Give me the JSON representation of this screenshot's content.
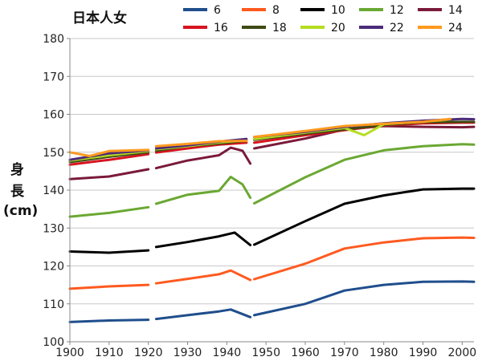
{
  "chart_data": {
    "type": "line",
    "title": "日本人女",
    "ylabel_lines": [
      "身",
      "長",
      "(cm)"
    ],
    "xlim": [
      1900,
      2003
    ],
    "ylim": [
      100,
      180
    ],
    "xticks": [
      1900,
      1910,
      1920,
      1930,
      1940,
      1950,
      1960,
      1970,
      1980,
      1990,
      2000
    ],
    "yticks": [
      100,
      110,
      120,
      130,
      140,
      150,
      160,
      170,
      180
    ],
    "grid": "horizontal",
    "legend_position": "top-right",
    "segments": [
      [
        1900,
        1920
      ],
      [
        1922,
        1946
      ],
      [
        1947,
        2003
      ]
    ],
    "series": [
      {
        "name": "6",
        "color": "#1f4e8c",
        "points": [
          [
            1900,
            105.2
          ],
          [
            1910,
            105.6
          ],
          [
            1920,
            105.8
          ],
          [
            1922,
            106.0
          ],
          [
            1930,
            107.0
          ],
          [
            1938,
            108.0
          ],
          [
            1941,
            108.5
          ],
          [
            1946,
            106.5
          ],
          [
            1947,
            107.0
          ],
          [
            1960,
            110.0
          ],
          [
            1970,
            113.5
          ],
          [
            1980,
            115.0
          ],
          [
            1990,
            115.8
          ],
          [
            2000,
            115.9
          ],
          [
            2003,
            115.8
          ]
        ]
      },
      {
        "name": "8",
        "color": "#ff5a1f",
        "points": [
          [
            1900,
            114.0
          ],
          [
            1910,
            114.6
          ],
          [
            1920,
            115.0
          ],
          [
            1922,
            115.4
          ],
          [
            1930,
            116.6
          ],
          [
            1938,
            117.8
          ],
          [
            1941,
            118.8
          ],
          [
            1946,
            116.3
          ],
          [
            1947,
            116.5
          ],
          [
            1960,
            120.6
          ],
          [
            1970,
            124.6
          ],
          [
            1980,
            126.2
          ],
          [
            1990,
            127.3
          ],
          [
            2000,
            127.5
          ],
          [
            2003,
            127.4
          ]
        ]
      },
      {
        "name": "10",
        "color": "#000000",
        "points": [
          [
            1900,
            123.8
          ],
          [
            1910,
            123.5
          ],
          [
            1920,
            124.1
          ],
          [
            1922,
            125.0
          ],
          [
            1930,
            126.3
          ],
          [
            1938,
            127.8
          ],
          [
            1942,
            128.8
          ],
          [
            1946,
            125.5
          ],
          [
            1947,
            125.6
          ],
          [
            1960,
            131.8
          ],
          [
            1970,
            136.4
          ],
          [
            1980,
            138.6
          ],
          [
            1990,
            140.2
          ],
          [
            2000,
            140.4
          ],
          [
            2003,
            140.4
          ]
        ]
      },
      {
        "name": "12",
        "color": "#6aa832",
        "points": [
          [
            1900,
            133.0
          ],
          [
            1910,
            134.0
          ],
          [
            1920,
            135.5
          ],
          [
            1922,
            136.4
          ],
          [
            1930,
            138.8
          ],
          [
            1938,
            139.8
          ],
          [
            1941,
            143.5
          ],
          [
            1944,
            141.5
          ],
          [
            1946,
            138.0
          ],
          [
            1947,
            136.5
          ],
          [
            1960,
            143.4
          ],
          [
            1970,
            148.0
          ],
          [
            1980,
            150.5
          ],
          [
            1990,
            151.6
          ],
          [
            2000,
            152.1
          ],
          [
            2003,
            152.0
          ]
        ]
      },
      {
        "name": "14",
        "color": "#7a1a3a",
        "points": [
          [
            1900,
            142.9
          ],
          [
            1910,
            143.6
          ],
          [
            1920,
            145.5
          ],
          [
            1922,
            145.8
          ],
          [
            1930,
            147.8
          ],
          [
            1938,
            149.2
          ],
          [
            1941,
            151.2
          ],
          [
            1944,
            150.4
          ],
          [
            1946,
            147.0
          ],
          [
            1947,
            151.0
          ],
          [
            1960,
            153.6
          ],
          [
            1970,
            156.0
          ],
          [
            1980,
            156.9
          ],
          [
            1990,
            156.7
          ],
          [
            2000,
            156.6
          ],
          [
            2003,
            156.7
          ]
        ]
      },
      {
        "name": "16",
        "color": "#d8141f",
        "points": [
          [
            1900,
            146.7
          ],
          [
            1910,
            148.0
          ],
          [
            1920,
            149.5
          ],
          [
            1922,
            149.9
          ],
          [
            1930,
            151.0
          ],
          [
            1938,
            152.0
          ],
          [
            1945,
            152.5
          ],
          [
            1947,
            152.5
          ],
          [
            1960,
            154.5
          ],
          [
            1970,
            155.8
          ],
          [
            1980,
            157.1
          ],
          [
            1990,
            157.6
          ],
          [
            2000,
            157.8
          ],
          [
            2003,
            157.8
          ]
        ]
      },
      {
        "name": "18",
        "color": "#3d4a14",
        "points": [
          [
            1900,
            147.4
          ],
          [
            1910,
            148.8
          ],
          [
            1920,
            150.0
          ],
          [
            1922,
            150.4
          ],
          [
            1930,
            151.6
          ],
          [
            1938,
            152.3
          ],
          [
            1945,
            153.0
          ],
          [
            1947,
            153.3
          ],
          [
            1960,
            154.9
          ],
          [
            1970,
            156.0
          ],
          [
            1980,
            157.2
          ],
          [
            1990,
            157.9
          ],
          [
            2000,
            158.0
          ],
          [
            2003,
            158.0
          ]
        ]
      },
      {
        "name": "20",
        "color": "#b6dd20",
        "points": [
          [
            1900,
            147.8
          ],
          [
            1910,
            149.2
          ],
          [
            1920,
            150.3
          ],
          [
            1922,
            150.8
          ],
          [
            1930,
            151.6
          ],
          [
            1938,
            152.6
          ],
          [
            1945,
            153.2
          ],
          [
            1947,
            153.5
          ],
          [
            1960,
            155.2
          ],
          [
            1970,
            156.4
          ],
          [
            1975,
            154.5
          ],
          [
            1980,
            157.4
          ],
          [
            1990,
            158.1
          ],
          [
            1997,
            158.6
          ]
        ]
      },
      {
        "name": "22",
        "color": "#4b2b7a",
        "points": [
          [
            1900,
            148.0
          ],
          [
            1910,
            149.7
          ],
          [
            1920,
            150.5
          ],
          [
            1922,
            151.0
          ],
          [
            1930,
            151.8
          ],
          [
            1938,
            152.8
          ],
          [
            1945,
            153.5
          ],
          [
            1947,
            154.0
          ],
          [
            1960,
            155.4
          ],
          [
            1970,
            156.7
          ],
          [
            1980,
            157.6
          ],
          [
            1990,
            158.3
          ],
          [
            2000,
            158.8
          ],
          [
            2003,
            158.7
          ]
        ]
      },
      {
        "name": "24",
        "color": "#ff9a1f",
        "points": [
          [
            1900,
            150.0
          ],
          [
            1905,
            149.0
          ],
          [
            1910,
            150.3
          ],
          [
            1920,
            150.6
          ],
          [
            1922,
            151.6
          ],
          [
            1930,
            152.2
          ],
          [
            1938,
            152.9
          ],
          [
            1945,
            153.0
          ],
          [
            1947,
            154.0
          ],
          [
            1960,
            155.6
          ],
          [
            1970,
            156.9
          ],
          [
            1980,
            157.5
          ],
          [
            1990,
            158.0
          ],
          [
            1997,
            158.8
          ]
        ]
      }
    ]
  }
}
